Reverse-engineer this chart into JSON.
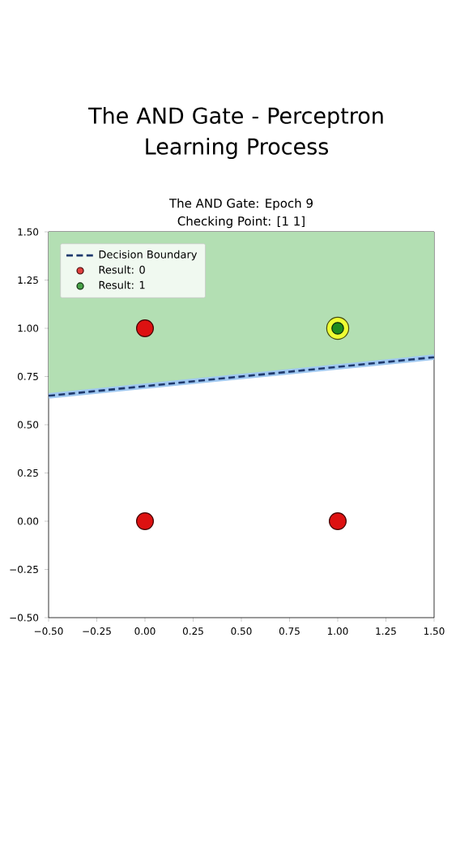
{
  "chart_data": {
    "type": "scatter",
    "title": "The AND Gate - Perceptron Learning Process",
    "subtitle": "The AND Gate: Epoch 9",
    "annotations": [
      "Checking Point: [1 1]"
    ],
    "xlim": [
      -0.5,
      1.5
    ],
    "ylim": [
      -0.5,
      1.5
    ],
    "xticks": [
      {
        "value": -0.5,
        "label": "−0.50"
      },
      {
        "value": -0.25,
        "label": "−0.25"
      },
      {
        "value": 0,
        "label": "0.00"
      },
      {
        "value": 0.25,
        "label": "0.25"
      },
      {
        "value": 0.5,
        "label": "0.50"
      },
      {
        "value": 0.75,
        "label": "0.75"
      },
      {
        "value": 1,
        "label": "1.00"
      },
      {
        "value": 1.25,
        "label": "1.25"
      },
      {
        "value": 1.5,
        "label": "1.50"
      }
    ],
    "yticks": [
      {
        "value": -0.5,
        "label": "−0.50"
      },
      {
        "value": -0.25,
        "label": "−0.25"
      },
      {
        "value": 0,
        "label": "0.00"
      },
      {
        "value": 0.25,
        "label": "0.25"
      },
      {
        "value": 0.5,
        "label": "0.50"
      },
      {
        "value": 0.75,
        "label": "0.75"
      },
      {
        "value": 1,
        "label": "1.00"
      },
      {
        "value": 1.25,
        "label": "1.25"
      },
      {
        "value": 1.5,
        "label": "1.50"
      }
    ],
    "legend": "top left",
    "grid": false,
    "series": [
      {
        "type": "line",
        "name": "Decision Boundary",
        "color": "#1f3a6e",
        "line_style": "dashed",
        "marker": "none",
        "x": [
          -0.5,
          1.5
        ],
        "values": [
          0.65,
          0.85
        ],
        "lower": [
          0.65,
          0.85
        ],
        "upper": [
          1.5,
          1.5
        ]
      },
      {
        "type": "scatter",
        "name": "Result: 0",
        "color": "#dd1111",
        "marker": "circle",
        "x": [
          0,
          0,
          1
        ],
        "values": [
          0,
          1,
          0
        ]
      },
      {
        "type": "scatter",
        "color": "#eeff33",
        "marker": "circle",
        "x": [
          1
        ],
        "values": [
          1
        ]
      },
      {
        "type": "scatter",
        "name": "Result: 1",
        "color": "#1e8c1e",
        "marker": "circle",
        "x": [
          1
        ],
        "values": [
          1
        ]
      }
    ]
  }
}
